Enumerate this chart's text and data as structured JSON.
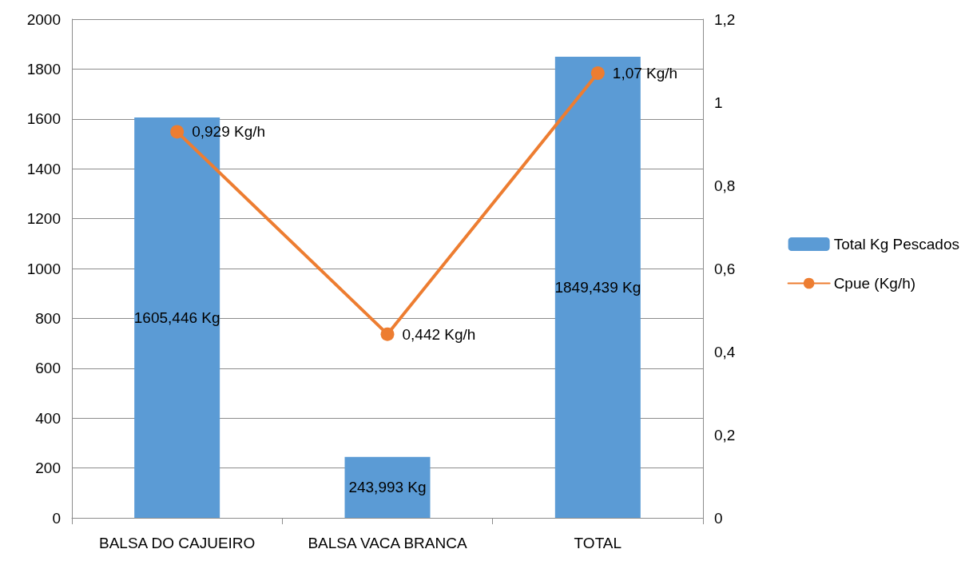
{
  "chart_data": {
    "type": "bar",
    "categories": [
      "BALSA DO CAJUEIRO",
      "BALSA VACA BRANCA",
      "TOTAL"
    ],
    "series": [
      {
        "name": "Total Kg Pescados",
        "color": "#5b9bd5",
        "values": [
          1605.446,
          243.993,
          1849.439
        ],
        "value_labels": [
          "1605,446 Kg",
          "243,993 Kg",
          "1849,439 Kg"
        ]
      },
      {
        "name": "Cpue (Kg/h)",
        "type": "line",
        "axis": "y2",
        "color": "#ed7d31",
        "values": [
          0.929,
          0.442,
          1.07
        ],
        "value_labels": [
          "0,929 Kg/h",
          "0,442 Kg/h",
          "1,07 Kg/h"
        ]
      }
    ],
    "ylim": [
      0,
      2000
    ],
    "yticks": [
      0,
      200,
      400,
      600,
      800,
      1000,
      1200,
      1400,
      1600,
      1800,
      2000
    ],
    "y2lim": [
      0,
      1.2
    ],
    "y2ticks": [
      0,
      {
        "value": 0.2,
        "label": "0,2"
      },
      {
        "value": 0.4,
        "label": "0,4"
      },
      {
        "value": 0.6,
        "label": "0,6"
      },
      {
        "value": 0.8,
        "label": "0,8"
      },
      1,
      {
        "value": 1.2,
        "label": "1,2"
      }
    ],
    "grid": "y",
    "legend": "right",
    "marker": "circle",
    "line_style": "solid"
  }
}
